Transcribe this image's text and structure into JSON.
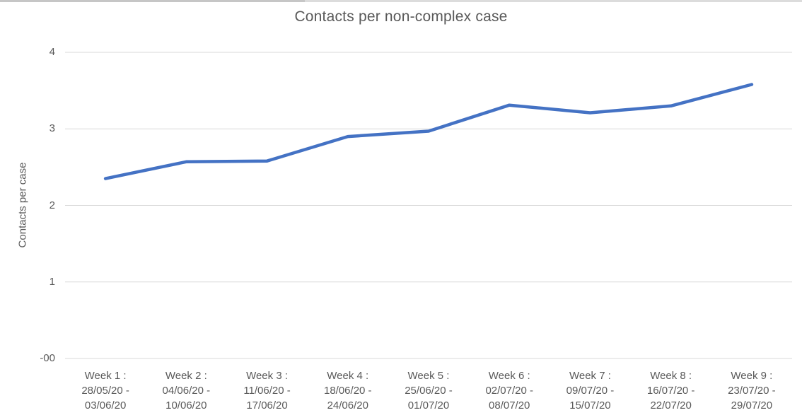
{
  "window": {
    "background_color": "#ffffff"
  },
  "chart_data": {
    "type": "line",
    "title": "Contacts per non-complex case",
    "xlabel": "",
    "ylabel": "Contacts per case",
    "ylim": [
      0,
      4
    ],
    "grid": "horizontal",
    "legend_position": "none",
    "y_tick_labels": [
      "4",
      "3",
      "2",
      "1",
      "-00"
    ],
    "y_tick_values": [
      4,
      3,
      2,
      1,
      0
    ],
    "categories": [
      [
        "Week 1 :",
        "28/05/20 -",
        "03/06/20"
      ],
      [
        "Week 2 :",
        "04/06/20 -",
        "10/06/20"
      ],
      [
        "Week 3 :",
        "11/06/20 -",
        "17/06/20"
      ],
      [
        "Week 4 :",
        "18/06/20 -",
        "24/06/20"
      ],
      [
        "Week 5 :",
        "25/06/20 -",
        "01/07/20"
      ],
      [
        "Week 6 :",
        "02/07/20 -",
        "08/07/20"
      ],
      [
        "Week 7 :",
        "09/07/20 -",
        "15/07/20"
      ],
      [
        "Week 8 :",
        "16/07/20 -",
        "22/07/20"
      ],
      [
        "Week 9 :",
        "23/07/20 -",
        "29/07/20"
      ]
    ],
    "series": [
      {
        "name": "Contacts per case",
        "values": [
          2.35,
          2.57,
          2.58,
          2.9,
          2.97,
          3.31,
          3.21,
          3.3,
          3.58
        ],
        "color": "#4472C4"
      }
    ]
  },
  "colors": {
    "line": "#4472C4",
    "gridline": "#D9D9D9",
    "text": "#595959"
  }
}
